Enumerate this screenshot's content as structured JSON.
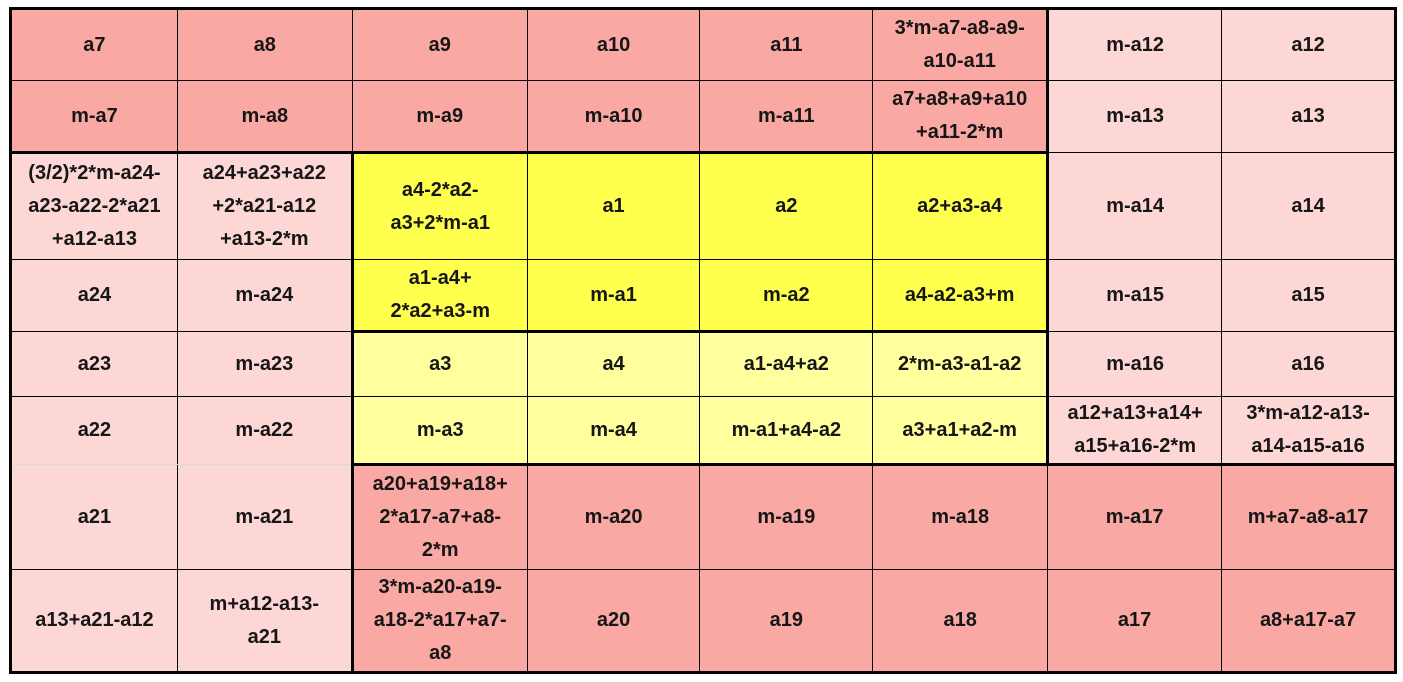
{
  "colors": {
    "salmon": "#f9a8a4",
    "pink": "#fdd7d5",
    "yellow": "#ffff4d",
    "cream": "#ffff9e"
  },
  "table": {
    "rows": [
      {
        "cells": [
          {
            "t": "a7",
            "c": "salmon"
          },
          {
            "t": "a8",
            "c": "salmon"
          },
          {
            "t": "a9",
            "c": "salmon"
          },
          {
            "t": "a10",
            "c": "salmon"
          },
          {
            "t": "a11",
            "c": "salmon"
          },
          {
            "t": "3*m-a7-a8-a9-\na10-a11",
            "c": "salmon"
          },
          {
            "t": "m-a12",
            "c": "pink"
          },
          {
            "t": "a12",
            "c": "pink"
          }
        ]
      },
      {
        "cells": [
          {
            "t": "m-a7",
            "c": "salmon"
          },
          {
            "t": "m-a8",
            "c": "salmon"
          },
          {
            "t": "m-a9",
            "c": "salmon"
          },
          {
            "t": "m-a10",
            "c": "salmon"
          },
          {
            "t": "m-a11",
            "c": "salmon"
          },
          {
            "t": "a7+a8+a9+a10\n+a11-2*m",
            "c": "salmon"
          },
          {
            "t": "m-a13",
            "c": "pink"
          },
          {
            "t": "a13",
            "c": "pink"
          }
        ]
      },
      {
        "cells": [
          {
            "t": "(3/2)*2*m-a24-\na23-a22-2*a21\n+a12-a13",
            "c": "pink"
          },
          {
            "t": "a24+a23+a22\n+2*a21-a12\n+a13-2*m",
            "c": "pink"
          },
          {
            "t": "a4-2*a2-\na3+2*m-a1",
            "c": "yellow"
          },
          {
            "t": "a1",
            "c": "yellow"
          },
          {
            "t": "a2",
            "c": "yellow"
          },
          {
            "t": "a2+a3-a4",
            "c": "yellow"
          },
          {
            "t": "m-a14",
            "c": "pink"
          },
          {
            "t": "a14",
            "c": "pink"
          }
        ]
      },
      {
        "cells": [
          {
            "t": "a24",
            "c": "pink"
          },
          {
            "t": "m-a24",
            "c": "pink"
          },
          {
            "t": "a1-a4+\n2*a2+a3-m",
            "c": "yellow"
          },
          {
            "t": "m-a1",
            "c": "yellow"
          },
          {
            "t": "m-a2",
            "c": "yellow"
          },
          {
            "t": "a4-a2-a3+m",
            "c": "yellow"
          },
          {
            "t": "m-a15",
            "c": "pink"
          },
          {
            "t": "a15",
            "c": "pink"
          }
        ]
      },
      {
        "cells": [
          {
            "t": "a23",
            "c": "pink"
          },
          {
            "t": "m-a23",
            "c": "pink"
          },
          {
            "t": "a3",
            "c": "cream"
          },
          {
            "t": "a4",
            "c": "cream"
          },
          {
            "t": "a1-a4+a2",
            "c": "cream"
          },
          {
            "t": "2*m-a3-a1-a2",
            "c": "cream"
          },
          {
            "t": "m-a16",
            "c": "pink"
          },
          {
            "t": "a16",
            "c": "pink"
          }
        ]
      },
      {
        "cells": [
          {
            "t": "a22",
            "c": "pink"
          },
          {
            "t": "m-a22",
            "c": "pink"
          },
          {
            "t": "m-a3",
            "c": "cream"
          },
          {
            "t": "m-a4",
            "c": "cream"
          },
          {
            "t": "m-a1+a4-a2",
            "c": "cream"
          },
          {
            "t": "a3+a1+a2-m",
            "c": "cream"
          },
          {
            "t": "a12+a13+a14+\na15+a16-2*m",
            "c": "pink"
          },
          {
            "t": "3*m-a12-a13-\na14-a15-a16",
            "c": "pink"
          }
        ]
      },
      {
        "cells": [
          {
            "t": "a21",
            "c": "pink"
          },
          {
            "t": "m-a21",
            "c": "pink"
          },
          {
            "t": "a20+a19+a18+\n2*a17-a7+a8-\n2*m",
            "c": "salmon"
          },
          {
            "t": "m-a20",
            "c": "salmon"
          },
          {
            "t": "m-a19",
            "c": "salmon"
          },
          {
            "t": "m-a18",
            "c": "salmon"
          },
          {
            "t": "m-a17",
            "c": "salmon"
          },
          {
            "t": "m+a7-a8-a17",
            "c": "salmon"
          }
        ]
      },
      {
        "cells": [
          {
            "t": "a13+a21-a12",
            "c": "pink"
          },
          {
            "t": "m+a12-a13-\na21",
            "c": "pink"
          },
          {
            "t": "3*m-a20-a19-\na18-2*a17+a7-\na8",
            "c": "salmon"
          },
          {
            "t": "a20",
            "c": "salmon"
          },
          {
            "t": "a19",
            "c": "salmon"
          },
          {
            "t": "a18",
            "c": "salmon"
          },
          {
            "t": "a17",
            "c": "salmon"
          },
          {
            "t": "a8+a17-a7",
            "c": "salmon"
          }
        ]
      }
    ]
  }
}
